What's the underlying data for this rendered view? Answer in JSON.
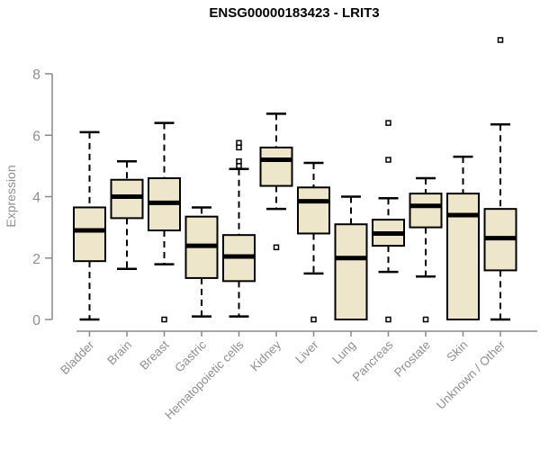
{
  "page": {
    "background_color": "#FFFFFF"
  },
  "chart_data": {
    "type": "boxplot",
    "title": "ENSG00000183423 - LRIT3",
    "xlabel": "",
    "ylabel": "Expression",
    "ylim": [
      0,
      8
    ],
    "yticks": [
      0,
      2,
      4,
      6,
      8
    ],
    "grid": false,
    "legend": false,
    "categories": [
      "Bladder",
      "Brain",
      "Breast",
      "Gastric",
      "Hematopoietic cells",
      "Kidney",
      "Liver",
      "Lung",
      "Pancreas",
      "Prostate",
      "Skin",
      "Unknown / Other"
    ],
    "series": [
      {
        "label": "Bladder",
        "min": 0,
        "q1": 1.9,
        "median": 2.9,
        "q3": 3.65,
        "max": 6.1,
        "outliers": []
      },
      {
        "label": "Brain",
        "min": 1.65,
        "q1": 3.3,
        "median": 4.0,
        "q3": 4.55,
        "max": 5.15,
        "outliers": []
      },
      {
        "label": "Breast",
        "min": 1.8,
        "q1": 2.9,
        "median": 3.8,
        "q3": 4.6,
        "max": 6.4,
        "outliers": [
          0
        ]
      },
      {
        "label": "Gastric",
        "min": 0.1,
        "q1": 1.35,
        "median": 2.4,
        "q3": 3.35,
        "max": 3.65,
        "outliers": []
      },
      {
        "label": "Hematopoietic cells",
        "min": 0.1,
        "q1": 1.25,
        "median": 2.05,
        "q3": 2.75,
        "max": 4.9,
        "outliers": [
          5.75,
          5.6,
          5.15,
          5.0
        ]
      },
      {
        "label": "Kidney",
        "min": 3.6,
        "q1": 4.35,
        "median": 5.2,
        "q3": 5.6,
        "max": 6.7,
        "outliers": [
          2.35
        ]
      },
      {
        "label": "Liver",
        "min": 1.5,
        "q1": 2.8,
        "median": 3.85,
        "q3": 4.3,
        "max": 5.1,
        "outliers": [
          0
        ]
      },
      {
        "label": "Lung",
        "min": 0,
        "q1": 0,
        "median": 2.0,
        "q3": 3.1,
        "max": 4.0,
        "outliers": []
      },
      {
        "label": "Pancreas",
        "min": 1.55,
        "q1": 2.4,
        "median": 2.8,
        "q3": 3.25,
        "max": 3.95,
        "outliers": [
          6.4,
          5.2,
          0
        ]
      },
      {
        "label": "Prostate",
        "min": 1.4,
        "q1": 3.0,
        "median": 3.7,
        "q3": 4.1,
        "max": 4.6,
        "outliers": [
          0
        ]
      },
      {
        "label": "Skin",
        "min": 0,
        "q1": 0,
        "median": 3.4,
        "q3": 4.1,
        "max": 5.3,
        "outliers": []
      },
      {
        "label": "Unknown / Other",
        "min": 0,
        "q1": 1.6,
        "median": 2.65,
        "q3": 3.6,
        "max": 6.35,
        "outliers": [
          9.1
        ]
      }
    ],
    "colors": {
      "box_fill": "#EDE6CB",
      "box_border": "#000000",
      "median": "#000000",
      "whisker": "#000000",
      "outlier_fill": "#FFFFFF",
      "axis": "#8A8A8A",
      "label_text": "#8F8F8F",
      "title_text": "#000000"
    }
  }
}
